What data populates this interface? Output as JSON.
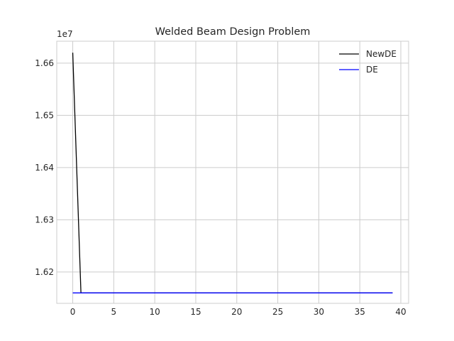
{
  "chart_data": {
    "type": "line",
    "title": "Welded Beam Design Problem",
    "xlabel": "",
    "ylabel": "",
    "y_offset_label": "1e7",
    "xlim": [
      -1.95,
      40.95
    ],
    "ylim": [
      16140000.0,
      16642000.0
    ],
    "x_ticks": [
      0,
      5,
      10,
      15,
      20,
      25,
      30,
      35,
      40
    ],
    "x_tick_labels": [
      "0",
      "5",
      "10",
      "15",
      "20",
      "25",
      "30",
      "35",
      "40"
    ],
    "y_ticks": [
      16200000.0,
      16300000.0,
      16400000.0,
      16500000.0,
      16600000.0
    ],
    "y_tick_labels": [
      "1.62",
      "1.63",
      "1.64",
      "1.65",
      "1.66"
    ],
    "grid": true,
    "legend_position": "top-right",
    "series": [
      {
        "name": "NewDE",
        "color": "#000000",
        "x": [
          0,
          1,
          39
        ],
        "y": [
          16620000,
          16160000,
          16160000
        ]
      },
      {
        "name": "DE",
        "color": "#0000ff",
        "x": [
          0,
          39
        ],
        "y": [
          16160000,
          16160000
        ]
      }
    ]
  }
}
